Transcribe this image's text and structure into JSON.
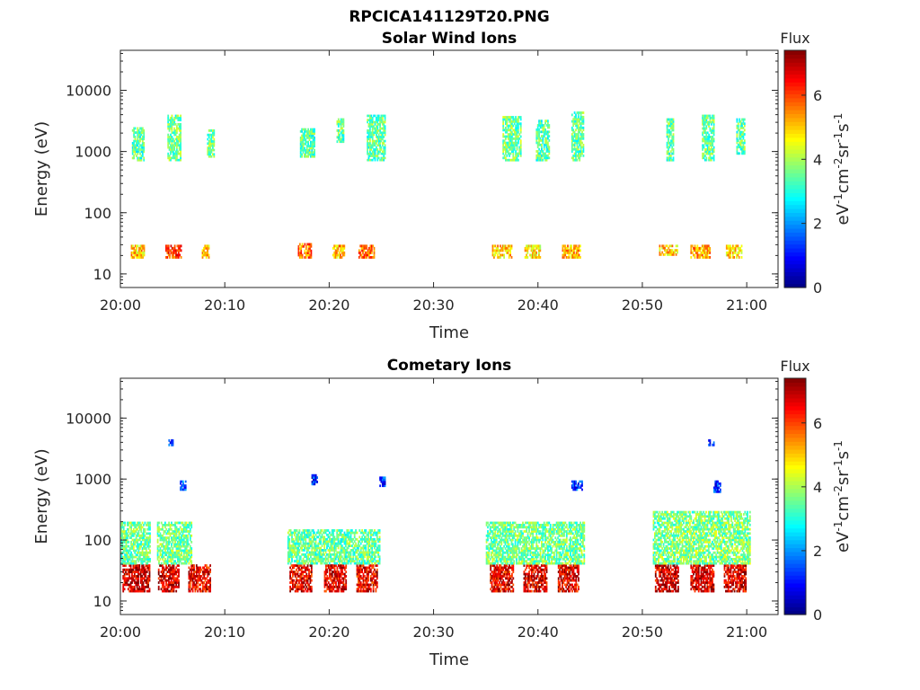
{
  "figure": {
    "filename": "RPCICA141129T20.PNG"
  },
  "chart_data": [
    {
      "type": "heatmap",
      "title": "Solar Wind Ions",
      "xlabel": "Time",
      "ylabel": "Energy (eV)",
      "x_ticks": [
        "20:00",
        "20:10",
        "20:20",
        "20:30",
        "20:40",
        "20:50",
        "21:00"
      ],
      "xlim": [
        "20:00",
        "21:03"
      ],
      "y_scale": "log",
      "y_ticks": [
        10,
        100,
        1000,
        10000
      ],
      "ylim": [
        6,
        45000
      ],
      "colorbar": {
        "title": "Flux",
        "unit": "eV-1cm-2sr-1s-1",
        "ticks": [
          0,
          2,
          4,
          6
        ],
        "range": [
          0,
          7.4
        ],
        "colormap": "jet"
      },
      "sweeps_start_min": [
        1.0,
        4.8,
        8.2,
        17.3,
        20.6,
        23.8,
        36.6,
        39.7,
        43.0,
        52.2,
        55.6,
        58.8
      ],
      "clusters": [
        {
          "t": [
            1.0,
            2.3
          ],
          "e": [
            18,
            30
          ],
          "flux": 5.0
        },
        {
          "t": [
            4.3,
            5.8
          ],
          "e": [
            18,
            30
          ],
          "flux": 6.0
        },
        {
          "t": [
            7.8,
            8.5
          ],
          "e": [
            18,
            30
          ],
          "flux": 5.2
        },
        {
          "t": [
            17.0,
            18.3
          ],
          "e": [
            18,
            32
          ],
          "flux": 5.6
        },
        {
          "t": [
            20.3,
            21.5
          ],
          "e": [
            18,
            30
          ],
          "flux": 5.2
        },
        {
          "t": [
            22.8,
            24.3
          ],
          "e": [
            18,
            30
          ],
          "flux": 5.6
        },
        {
          "t": [
            35.6,
            37.4
          ],
          "e": [
            18,
            30
          ],
          "flux": 5.0
        },
        {
          "t": [
            38.7,
            40.2
          ],
          "e": [
            18,
            30
          ],
          "flux": 4.8
        },
        {
          "t": [
            42.3,
            44.0
          ],
          "e": [
            18,
            30
          ],
          "flux": 5.2
        },
        {
          "t": [
            51.6,
            53.3
          ],
          "e": [
            20,
            30
          ],
          "flux": 5.0
        },
        {
          "t": [
            54.6,
            56.5
          ],
          "e": [
            18,
            30
          ],
          "flux": 5.3
        },
        {
          "t": [
            58.0,
            59.5
          ],
          "e": [
            18,
            30
          ],
          "flux": 4.8
        },
        {
          "t": [
            1.1,
            2.3
          ],
          "e": [
            700,
            2500
          ],
          "flux": 3.4
        },
        {
          "t": [
            4.5,
            5.8
          ],
          "e": [
            700,
            4000
          ],
          "flux": 3.6
        },
        {
          "t": [
            8.3,
            9.0
          ],
          "e": [
            800,
            2300
          ],
          "flux": 3.6
        },
        {
          "t": [
            17.2,
            18.6
          ],
          "e": [
            800,
            2400
          ],
          "flux": 3.4
        },
        {
          "t": [
            20.7,
            21.4
          ],
          "e": [
            1400,
            3500
          ],
          "flux": 3.4
        },
        {
          "t": [
            23.6,
            25.3
          ],
          "e": [
            700,
            4000
          ],
          "flux": 3.5
        },
        {
          "t": [
            36.6,
            38.3
          ],
          "e": [
            700,
            3800
          ],
          "flux": 3.6
        },
        {
          "t": [
            39.8,
            41.0
          ],
          "e": [
            700,
            3300
          ],
          "flux": 3.4
        },
        {
          "t": [
            43.2,
            44.3
          ],
          "e": [
            700,
            4500
          ],
          "flux": 3.5
        },
        {
          "t": [
            52.3,
            53.0
          ],
          "e": [
            700,
            3500
          ],
          "flux": 3.4
        },
        {
          "t": [
            55.7,
            56.8
          ],
          "e": [
            700,
            4000
          ],
          "flux": 3.5
        },
        {
          "t": [
            59.0,
            59.8
          ],
          "e": [
            900,
            3500
          ],
          "flux": 3.4
        }
      ]
    },
    {
      "type": "heatmap",
      "title": "Cometary Ions",
      "xlabel": "Time",
      "ylabel": "Energy (eV)",
      "x_ticks": [
        "20:00",
        "20:10",
        "20:20",
        "20:30",
        "20:40",
        "20:50",
        "21:00"
      ],
      "xlim": [
        "20:00",
        "21:03"
      ],
      "y_scale": "log",
      "y_ticks": [
        10,
        100,
        1000,
        10000
      ],
      "ylim": [
        6,
        45000
      ],
      "colorbar": {
        "title": "Flux",
        "unit": "eV-1cm-2sr-1s-1",
        "ticks": [
          0,
          2,
          4,
          6
        ],
        "range": [
          0,
          7.4
        ],
        "colormap": "jet"
      },
      "clusters": [
        {
          "t": [
            0.2,
            2.8
          ],
          "e": [
            14,
            40
          ],
          "flux": 6.8
        },
        {
          "t": [
            3.6,
            5.6
          ],
          "e": [
            14,
            40
          ],
          "flux": 6.8
        },
        {
          "t": [
            6.5,
            8.6
          ],
          "e": [
            14,
            40
          ],
          "flux": 6.6
        },
        {
          "t": [
            16.2,
            18.3
          ],
          "e": [
            14,
            40
          ],
          "flux": 6.6
        },
        {
          "t": [
            19.5,
            21.6
          ],
          "e": [
            14,
            40
          ],
          "flux": 6.6
        },
        {
          "t": [
            22.6,
            24.6
          ],
          "e": [
            14,
            40
          ],
          "flux": 6.5
        },
        {
          "t": [
            35.4,
            37.6
          ],
          "e": [
            14,
            40
          ],
          "flux": 6.6
        },
        {
          "t": [
            38.6,
            40.8
          ],
          "e": [
            14,
            40
          ],
          "flux": 6.7
        },
        {
          "t": [
            41.9,
            43.9
          ],
          "e": [
            14,
            40
          ],
          "flux": 6.6
        },
        {
          "t": [
            51.2,
            53.4
          ],
          "e": [
            14,
            40
          ],
          "flux": 6.8
        },
        {
          "t": [
            54.6,
            56.8
          ],
          "e": [
            14,
            40
          ],
          "flux": 6.8
        },
        {
          "t": [
            57.8,
            59.9
          ],
          "e": [
            14,
            40
          ],
          "flux": 6.7
        },
        {
          "t": [
            0.0,
            2.8
          ],
          "e": [
            40,
            200
          ],
          "flux": 3.6
        },
        {
          "t": [
            3.5,
            6.8
          ],
          "e": [
            40,
            200
          ],
          "flux": 3.6
        },
        {
          "t": [
            16.0,
            24.8
          ],
          "e": [
            40,
            150
          ],
          "flux": 3.5
        },
        {
          "t": [
            35.0,
            44.4
          ],
          "e": [
            40,
            200
          ],
          "flux": 3.6
        },
        {
          "t": [
            51.0,
            60.3
          ],
          "e": [
            40,
            300
          ],
          "flux": 3.7
        },
        {
          "t": [
            4.6,
            5.0
          ],
          "e": [
            3500,
            4500
          ],
          "flux": 1.2
        },
        {
          "t": [
            5.7,
            6.2
          ],
          "e": [
            650,
            950
          ],
          "flux": 1.5
        },
        {
          "t": [
            18.3,
            18.8
          ],
          "e": [
            800,
            1200
          ],
          "flux": 1.2
        },
        {
          "t": [
            24.8,
            25.3
          ],
          "e": [
            750,
            1100
          ],
          "flux": 1.3
        },
        {
          "t": [
            43.2,
            44.2
          ],
          "e": [
            650,
            950
          ],
          "flux": 1.4
        },
        {
          "t": [
            56.3,
            56.8
          ],
          "e": [
            3500,
            4500
          ],
          "flux": 1.2
        },
        {
          "t": [
            56.8,
            57.4
          ],
          "e": [
            600,
            950
          ],
          "flux": 1.4
        }
      ]
    }
  ]
}
